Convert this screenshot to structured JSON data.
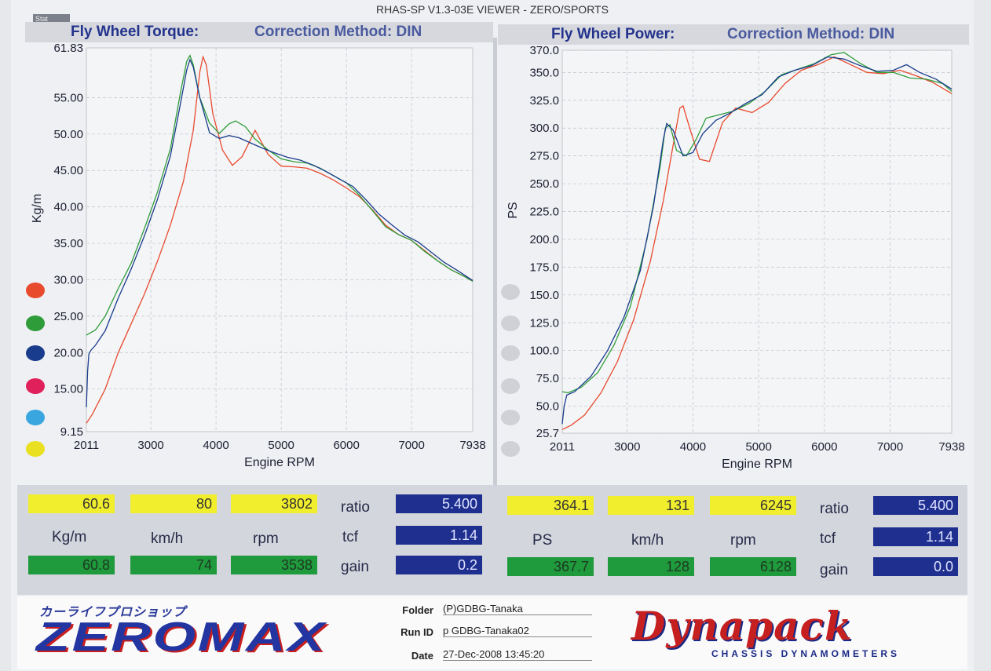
{
  "window_title": "RHAS-SP V1.3-03E VIEWER - ZERO/SPORTS",
  "stat_tab": "Stat",
  "colors": {
    "red": "#e84a2e",
    "green": "#2f9c3a",
    "blue": "#1a3c8c",
    "magenta": "#e0205a",
    "cyan": "#3aa6e0",
    "yellow": "#e8e020",
    "grey_dot": "#cfd1d6"
  },
  "torque_panel": {
    "title": "Fly Wheel Torque:",
    "method": "Correction Method: DIN"
  },
  "power_panel": {
    "title": "Fly Wheel Power:",
    "method": "Correction Method: DIN"
  },
  "chart_data": [
    {
      "type": "line",
      "xlabel": "Engine RPM",
      "ylabel": "Kg/m",
      "xlim": [
        2011,
        7938
      ],
      "ylim": [
        9.15,
        61.83
      ],
      "x_ticks": [
        "2011",
        "3000",
        "4000",
        "5000",
        "6000",
        "7000",
        "7938"
      ],
      "x_tick_values": [
        2011,
        3000,
        4000,
        5000,
        6000,
        7000,
        7938
      ],
      "y_ticks": [
        "61.83",
        "55.00",
        "50.00",
        "45.00",
        "40.00",
        "35.00",
        "30.00",
        "25.00",
        "20.00",
        "15.00",
        "9.15"
      ],
      "y_tick_values": [
        61.83,
        55,
        50,
        45,
        40,
        35,
        30,
        25,
        20,
        15,
        9.15
      ],
      "grid": true,
      "series": [
        {
          "color": "#e84a2e",
          "x": [
            2011,
            2100,
            2300,
            2500,
            2700,
            2900,
            3100,
            3300,
            3500,
            3650,
            3750,
            3800,
            3850,
            3950,
            4100,
            4250,
            4400,
            4600,
            4800,
            5000,
            5200,
            5400,
            5600,
            5800,
            6000,
            6200,
            6400,
            6600,
            6800,
            7000,
            7200,
            7400,
            7600,
            7800,
            7938
          ],
          "y": [
            10.3,
            11.5,
            15,
            20,
            24,
            28,
            32.5,
            37.5,
            43.5,
            50.5,
            58.5,
            60.6,
            59.5,
            52.8,
            47.8,
            45.7,
            46.9,
            50.5,
            47.2,
            45.6,
            45.5,
            45.3,
            44.6,
            43.7,
            42.6,
            41.4,
            39.6,
            37.5,
            36.2,
            35.4,
            34,
            32.6,
            31.4,
            30.5,
            29.8
          ]
        },
        {
          "color": "#2f9c3a",
          "x": [
            2011,
            2050,
            2150,
            2300,
            2500,
            2700,
            2900,
            3100,
            3300,
            3450,
            3550,
            3600,
            3650,
            3750,
            3900,
            4050,
            4200,
            4300,
            4450,
            4600,
            4800,
            5000,
            5200,
            5400,
            5600,
            5800,
            6000,
            6200,
            6400,
            6600,
            6800,
            7000,
            7200,
            7400,
            7600,
            7800,
            7938
          ],
          "y": [
            22.4,
            22.6,
            23.1,
            25,
            28.8,
            32.3,
            37,
            42,
            48,
            55.5,
            60,
            60.8,
            59.5,
            55,
            51.5,
            50.1,
            51.4,
            51.8,
            51,
            49.3,
            47.8,
            46.6,
            46.2,
            46,
            45.3,
            44.3,
            43.3,
            41.6,
            39.5,
            37.3,
            36.2,
            35.4,
            33.9,
            32.6,
            31.4,
            30.5,
            29.8
          ]
        },
        {
          "color": "#1a3c8c",
          "x": [
            2011,
            2030,
            2050,
            2080,
            2150,
            2300,
            2500,
            2700,
            2900,
            3100,
            3300,
            3450,
            3550,
            3600,
            3650,
            3750,
            3900,
            4050,
            4200,
            4350,
            4500,
            4700,
            4900,
            5100,
            5300,
            5500,
            5700,
            5900,
            6100,
            6300,
            6500,
            6700,
            6900,
            7100,
            7300,
            7500,
            7700,
            7938
          ],
          "y": [
            12.5,
            17.5,
            19.8,
            20.3,
            21,
            23,
            27.5,
            31.5,
            36,
            41,
            47,
            54,
            58.8,
            60.2,
            59.2,
            55,
            50.2,
            49.4,
            49.8,
            49.5,
            48.9,
            48.1,
            47.4,
            46.8,
            46.4,
            45.7,
            44.8,
            43.8,
            42.8,
            41,
            39,
            37.5,
            36.1,
            35.2,
            33.8,
            32.4,
            31.3,
            29.9
          ]
        }
      ]
    },
    {
      "type": "line",
      "xlabel": "Engine RPM",
      "ylabel": "PS",
      "xlim": [
        2011,
        7938
      ],
      "ylim": [
        25.7,
        370
      ],
      "x_ticks": [
        "2011",
        "3000",
        "4000",
        "5000",
        "6000",
        "7000",
        "7938"
      ],
      "x_tick_values": [
        2011,
        3000,
        4000,
        5000,
        6000,
        7000,
        7938
      ],
      "y_ticks": [
        "370.0",
        "350.0",
        "325.0",
        "300.0",
        "275.0",
        "250.0",
        "225.0",
        "200.0",
        "175.0",
        "150.0",
        "125.0",
        "100.0",
        "75.0",
        "50.0",
        "25.7"
      ],
      "y_tick_values": [
        370,
        350,
        325,
        300,
        275,
        250,
        225,
        200,
        175,
        150,
        125,
        100,
        75,
        50,
        25.7
      ],
      "grid": true,
      "series": [
        {
          "color": "#e84a2e",
          "x": [
            2011,
            2150,
            2350,
            2600,
            2850,
            3100,
            3350,
            3550,
            3700,
            3800,
            3850,
            3950,
            4100,
            4250,
            4450,
            4650,
            4900,
            5150,
            5400,
            5650,
            5900,
            6150,
            6400,
            6650,
            6900,
            7150,
            7400,
            7650,
            7938
          ],
          "y": [
            29,
            33,
            42,
            62,
            90,
            128,
            180,
            235,
            285,
            318,
            320,
            300,
            272,
            270,
            305,
            318,
            314,
            323,
            340,
            352,
            357,
            364,
            357,
            350,
            349,
            352,
            347,
            341,
            331
          ]
        },
        {
          "color": "#2f9c3a",
          "x": [
            2011,
            2100,
            2300,
            2550,
            2800,
            3050,
            3300,
            3500,
            3580,
            3650,
            3750,
            3900,
            4050,
            4200,
            4400,
            4600,
            4850,
            5100,
            5350,
            5600,
            5850,
            6100,
            6300,
            6550,
            6800,
            7050,
            7300,
            7550,
            7800,
            7938
          ],
          "y": [
            63,
            62,
            67,
            80,
            105,
            140,
            200,
            265,
            300,
            303,
            280,
            275,
            290,
            309,
            312,
            315,
            322,
            333,
            348,
            353,
            358,
            366,
            368,
            358,
            350,
            350,
            345,
            344,
            340,
            333
          ]
        },
        {
          "color": "#1a3c8c",
          "x": [
            2011,
            2040,
            2080,
            2200,
            2450,
            2700,
            2950,
            3200,
            3400,
            3550,
            3600,
            3700,
            3850,
            4000,
            4150,
            4350,
            4550,
            4800,
            5050,
            5300,
            5550,
            5800,
            6050,
            6300,
            6550,
            6800,
            7050,
            7250,
            7450,
            7700,
            7938
          ],
          "y": [
            34,
            50,
            60,
            63,
            77,
            100,
            130,
            172,
            230,
            290,
            304,
            298,
            275,
            278,
            295,
            307,
            313,
            322,
            330,
            346,
            352,
            356,
            364,
            362,
            356,
            351,
            352,
            357,
            350,
            344,
            335
          ]
        }
      ]
    }
  ],
  "readouts": {
    "left": {
      "yellow": [
        "60.6",
        "80",
        "3802"
      ],
      "units": [
        "Kg/m",
        "km/h",
        "rpm"
      ],
      "green": [
        "60.8",
        "74",
        "3538"
      ],
      "params": [
        {
          "label": "ratio",
          "value": "5.400"
        },
        {
          "label": "tcf",
          "value": "1.14"
        },
        {
          "label": "gain",
          "value": "0.2"
        }
      ]
    },
    "right": {
      "yellow": [
        "364.1",
        "131",
        "6245"
      ],
      "units": [
        "PS",
        "km/h",
        "rpm"
      ],
      "green": [
        "367.7",
        "128",
        "6128"
      ],
      "params": [
        {
          "label": "ratio",
          "value": "5.400"
        },
        {
          "label": "tcf",
          "value": "1.14"
        },
        {
          "label": "gain",
          "value": "0.0"
        }
      ]
    }
  },
  "footer": {
    "folder_label": "Folder",
    "folder_value": "(P)GDBG-Tanaka",
    "runid_label": "Run ID",
    "runid_value": "p GDBG-Tanaka02",
    "date_label": "Date",
    "date_value": "27-Dec-2008  13:45:20",
    "zeromax_kana": "カーライフプロショップ",
    "zeromax_logo": "ZEROMAX",
    "dynapack_logo": "Dynapack",
    "dynapack_sub": "CHASSIS  DYNAMOMETERS"
  }
}
